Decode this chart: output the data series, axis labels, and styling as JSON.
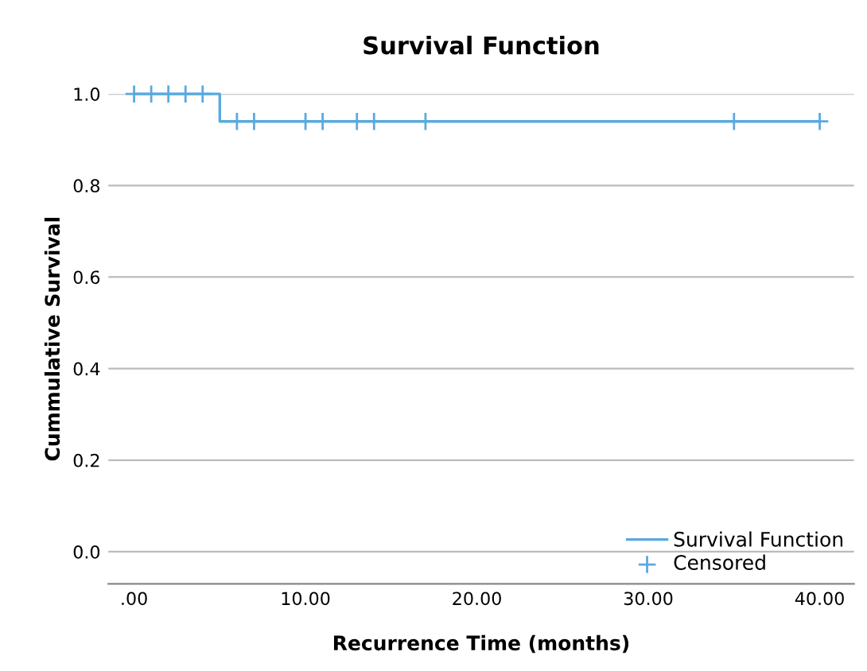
{
  "chart_data": {
    "type": "step",
    "title": "Survival Function",
    "xlabel": "Recurrence Time (months)",
    "ylabel": "Cummulative Survival",
    "series": [
      {
        "name": "Survival Function",
        "color": "#5aa9e0",
        "x": [
          0,
          5,
          40
        ],
        "values": [
          1.0,
          0.94,
          0.94
        ]
      },
      {
        "name": "Censored",
        "type": "scatter",
        "marker": "cross",
        "color": "#5aa9e0",
        "x": [
          0,
          1,
          2,
          3,
          4,
          6,
          7,
          10,
          11,
          13,
          14,
          17,
          35,
          40
        ],
        "values": [
          1.0,
          1.0,
          1.0,
          1.0,
          1.0,
          0.94,
          0.94,
          0.94,
          0.94,
          0.94,
          0.94,
          0.94,
          0.94,
          0.94
        ]
      }
    ],
    "xlim": [
      -1.5,
      42
    ],
    "ylim": [
      -0.07,
      1.0
    ],
    "xticks": [
      {
        "value": 0,
        "label": ".00"
      },
      {
        "value": 10,
        "label": "10.00"
      },
      {
        "value": 20,
        "label": "20.00"
      },
      {
        "value": 30,
        "label": "30.00"
      },
      {
        "value": 40,
        "label": "40.00"
      }
    ],
    "yticks": [
      {
        "value": 0,
        "label": "0.0"
      },
      {
        "value": 0.2,
        "label": "0.2"
      },
      {
        "value": 0.4,
        "label": "0.4"
      },
      {
        "value": 0.6,
        "label": "0.6"
      },
      {
        "value": 0.8,
        "label": "0.8"
      },
      {
        "value": 1.0,
        "label": "1.0"
      }
    ],
    "grid": "y",
    "legend": "bottom right"
  }
}
